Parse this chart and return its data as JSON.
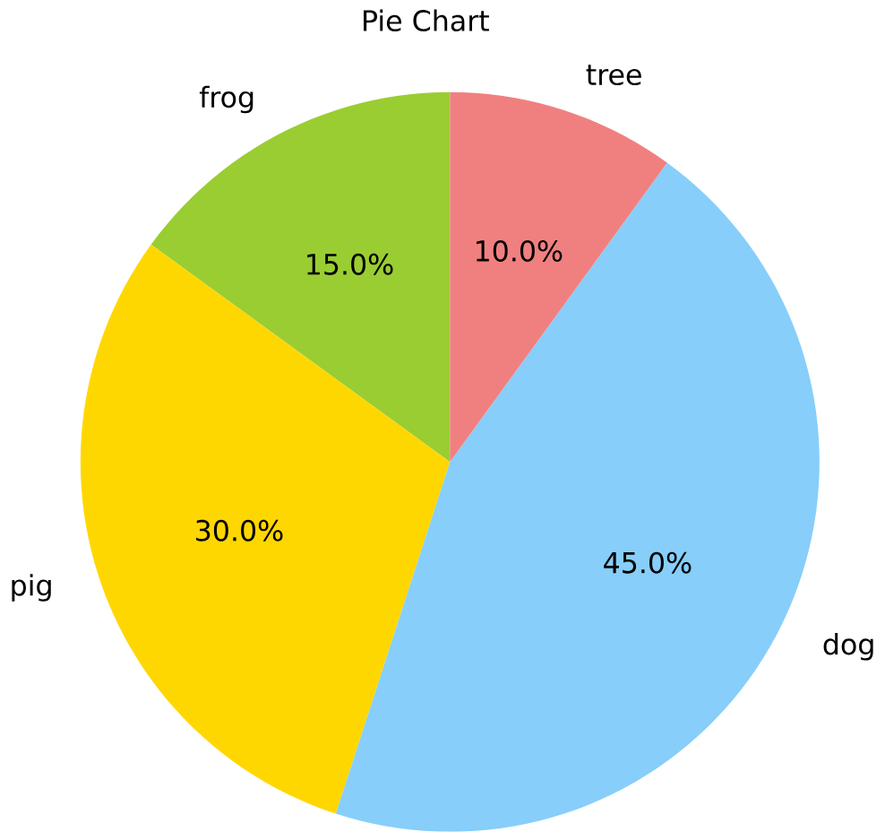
{
  "chart_data": {
    "type": "pie",
    "title": "Pie Chart",
    "categories": [
      "frog",
      "pig",
      "dog",
      "tree"
    ],
    "values": [
      15,
      30,
      45,
      10
    ],
    "value_labels": [
      "15.0%",
      "30.0%",
      "45.0%",
      "10.0%"
    ],
    "colors": [
      "#9acd32",
      "#ffd700",
      "#87cefa",
      "#f08080"
    ]
  }
}
